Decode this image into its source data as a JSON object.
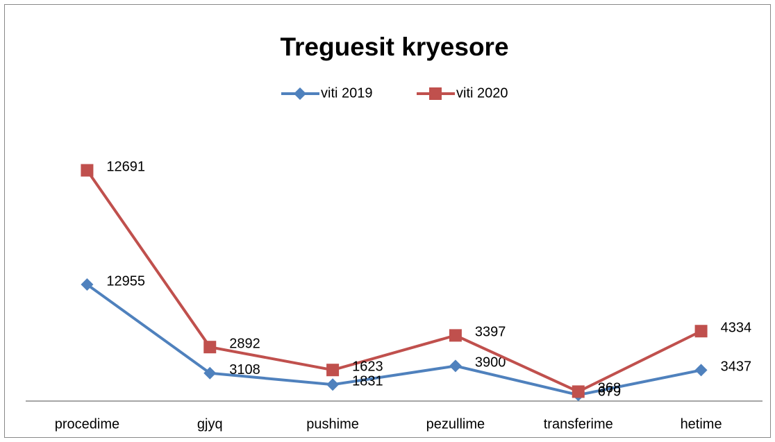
{
  "chart_data": {
    "type": "line",
    "stacked": true,
    "title": "Treguesit kryesore",
    "categories": [
      "procedime",
      "gjyq",
      "pushime",
      "pezullime",
      "transferime",
      "hetime"
    ],
    "series": [
      {
        "name": "viti 2019",
        "color": "#4f81bd",
        "marker": "diamond",
        "values": [
          12955,
          3108,
          1831,
          3900,
          679,
          3437
        ]
      },
      {
        "name": "viti 2020",
        "color": "#c0504d",
        "marker": "square",
        "values": [
          12691,
          2892,
          1623,
          3397,
          368,
          4334
        ]
      }
    ],
    "ylim": [
      0,
      30000
    ],
    "legend": "top",
    "grid": false
  }
}
